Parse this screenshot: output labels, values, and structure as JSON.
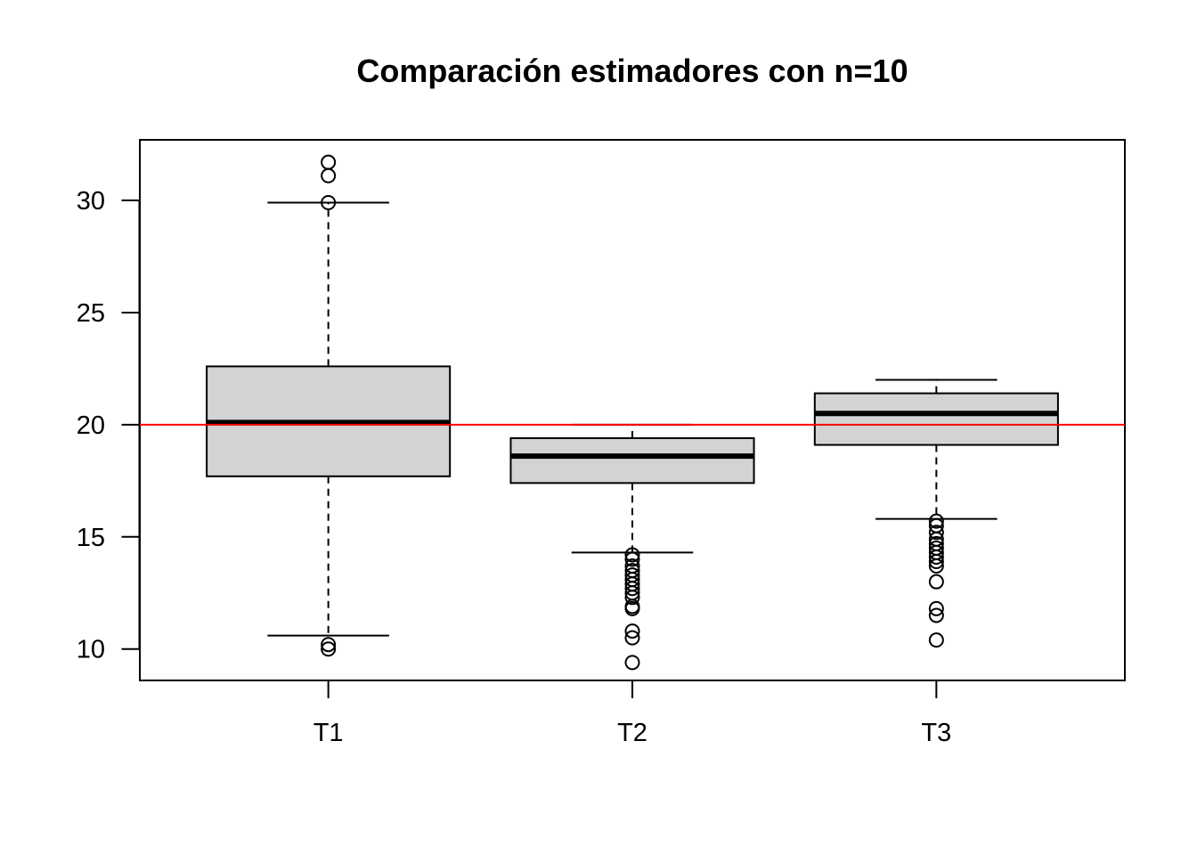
{
  "chart_data": {
    "type": "boxplot",
    "title": "Comparación estimadores con n=10",
    "xlabel": "",
    "ylabel": "",
    "ylim": [
      8.6,
      32.7
    ],
    "yticks": [
      10,
      15,
      20,
      25,
      30
    ],
    "ytick_labels": [
      "10",
      "15",
      "20",
      "25",
      "30"
    ],
    "categories": [
      "T1",
      "T2",
      "T3"
    ],
    "grid": false,
    "legend": "none",
    "box_fill": "#d3d3d3",
    "reference_line": {
      "y": 20,
      "color": "#ff0000"
    },
    "boxes": [
      {
        "name": "T1",
        "whisker_low": 10.6,
        "q1": 17.7,
        "median": 20.1,
        "q3": 22.6,
        "whisker_high": 29.9,
        "outliers": [
          31.7,
          31.1,
          29.9,
          10.2,
          10.0
        ]
      },
      {
        "name": "T2",
        "whisker_low": 14.3,
        "q1": 17.4,
        "median": 18.6,
        "q3": 19.4,
        "whisker_high": 20.0,
        "outliers": [
          14.2,
          14.0,
          13.7,
          13.5,
          13.3,
          13.1,
          12.9,
          12.7,
          12.5,
          12.3,
          11.9,
          11.8,
          10.8,
          10.5,
          9.4
        ]
      },
      {
        "name": "T3",
        "whisker_low": 15.8,
        "q1": 19.1,
        "median": 20.5,
        "q3": 21.4,
        "whisker_high": 22.0,
        "outliers": [
          15.7,
          15.5,
          15.2,
          14.9,
          14.7,
          14.5,
          14.3,
          14.1,
          13.9,
          13.7,
          13.0,
          11.8,
          11.5,
          10.4
        ]
      }
    ]
  }
}
